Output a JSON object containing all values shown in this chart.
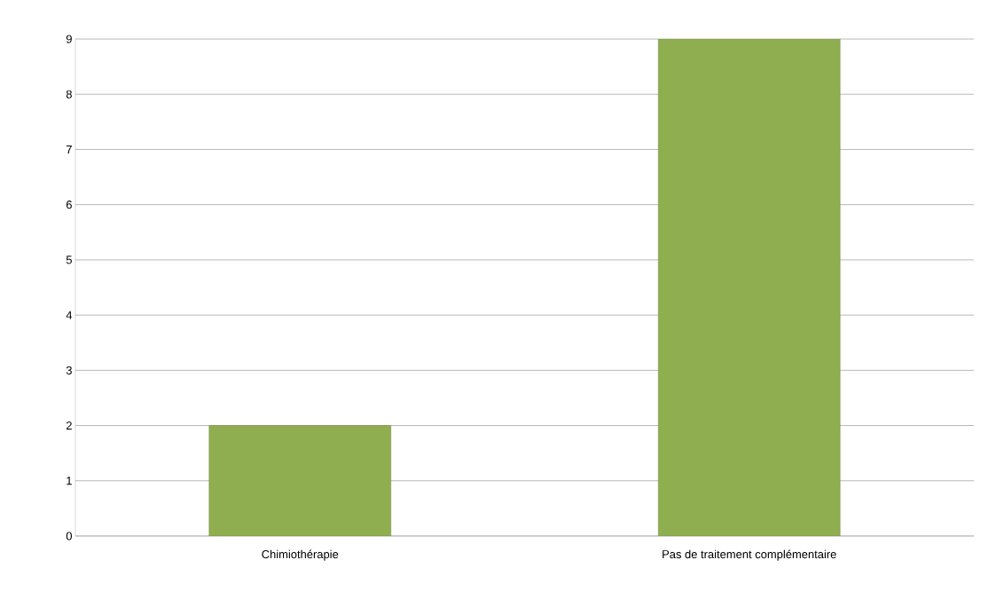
{
  "chart_data": {
    "type": "bar",
    "categories": [
      "Chimiothérapie",
      "Pas de traitement complémentaire"
    ],
    "values": [
      2,
      9
    ],
    "color": "#8fae4f",
    "ylim": [
      0,
      9
    ],
    "yticks": [
      0,
      1,
      2,
      3,
      4,
      5,
      6,
      7,
      8,
      9
    ],
    "grid": "y"
  }
}
